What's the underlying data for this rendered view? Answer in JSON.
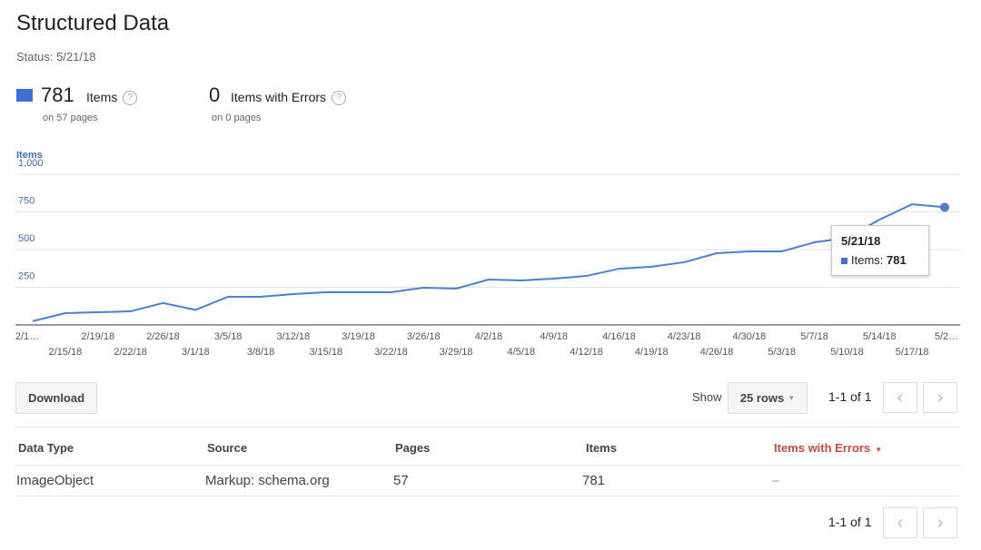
{
  "header": {
    "title": "Structured Data",
    "status": "Status: 5/21/18"
  },
  "summary": [
    {
      "value": 781,
      "label": "Items",
      "sub": "on 57 pages"
    },
    {
      "value": 0,
      "label": "Items with Errors",
      "sub": "on 0 pages"
    }
  ],
  "chart_data": {
    "type": "line",
    "y_label": "Items",
    "categories": [
      "2/1…",
      "2/15/18",
      "2/19/18",
      "2/22/18",
      "2/26/18",
      "3/1/18",
      "3/5/18",
      "3/8/18",
      "3/12/18",
      "3/15/18",
      "3/19/18",
      "3/22/18",
      "3/26/18",
      "3/29/18",
      "4/2/18",
      "4/5/18",
      "4/9/18",
      "4/12/18",
      "4/16/18",
      "4/19/18",
      "4/23/18",
      "4/26/18",
      "4/30/18",
      "5/3/18",
      "5/7/18",
      "5/10/18",
      "5/14/18",
      "5/17/18",
      "5/2…"
    ],
    "series": [
      {
        "name": "Items",
        "color": "#4a7fd6",
        "values": [
          25,
          78,
          84,
          90,
          145,
          100,
          187,
          187,
          205,
          217,
          217,
          217,
          247,
          241,
          301,
          295,
          307,
          325,
          373,
          386,
          416,
          476,
          488,
          488,
          548,
          578,
          699,
          801,
          781
        ]
      }
    ],
    "ylim": [
      0,
      1000
    ],
    "yticks": [
      250,
      500,
      750,
      {
        "value": 1000,
        "label": "1,000"
      }
    ],
    "grid": true,
    "tooltip": {
      "date": "5/21/18",
      "label": "Items:"
    }
  },
  "toolbar": {
    "download": "Download",
    "show": "Show",
    "rows": "25 rows",
    "pagination": "1-1 of 1"
  },
  "table": {
    "headers": [
      "Data Type",
      "Source",
      "Pages",
      "Items",
      "Items with Errors"
    ],
    "rows": [
      [
        "ImageObject",
        "Markup: schema.org",
        57,
        781,
        "–"
      ]
    ]
  },
  "footer": {
    "pagination": "1-1 of 1"
  }
}
